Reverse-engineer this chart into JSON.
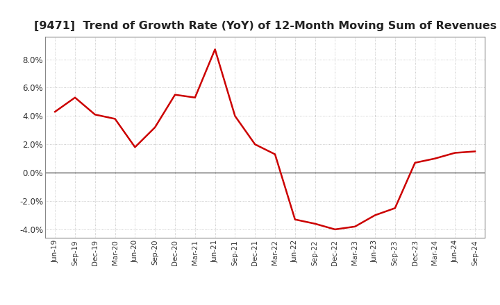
{
  "title": "[9471]  Trend of Growth Rate (YoY) of 12-Month Moving Sum of Revenues",
  "title_fontsize": 11.5,
  "line_color": "#cc0000",
  "background_color": "#ffffff",
  "plot_bg_color": "#ffffff",
  "ylim": [
    -0.046,
    0.096
  ],
  "yticks": [
    -0.04,
    -0.02,
    0.0,
    0.02,
    0.04,
    0.06,
    0.08
  ],
  "grid_color": "#bbbbbb",
  "zero_line_color": "#444444",
  "values": [
    0.043,
    0.053,
    0.041,
    0.038,
    0.018,
    0.032,
    0.055,
    0.053,
    0.087,
    0.04,
    0.02,
    0.013,
    -0.033,
    -0.036,
    -0.04,
    -0.038,
    -0.03,
    -0.025,
    0.007,
    0.01,
    0.014,
    0.015
  ],
  "xtick_labels": [
    "Jun-19",
    "Sep-19",
    "Dec-19",
    "Mar-20",
    "Jun-20",
    "Sep-20",
    "Dec-20",
    "Mar-21",
    "Jun-21",
    "Sep-21",
    "Dec-21",
    "Mar-22",
    "Jun-22",
    "Sep-22",
    "Dec-22",
    "Mar-23",
    "Jun-23",
    "Sep-23",
    "Dec-23",
    "Mar-24",
    "Jun-24",
    "Sep-24"
  ]
}
